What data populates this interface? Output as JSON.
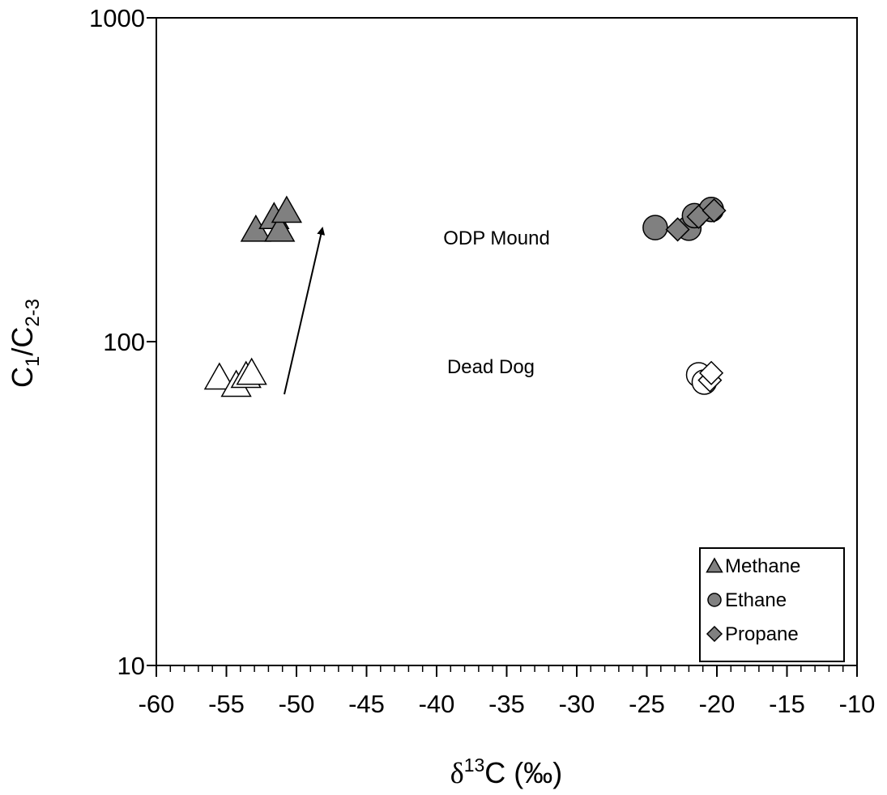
{
  "chart_data": {
    "type": "scatter",
    "x_label": [
      "δ",
      "13",
      "C (‰)"
    ],
    "y_label": [
      "C",
      "1",
      "/C",
      "2-3"
    ],
    "annotations": [
      "ODP Mound",
      "Dead Dog"
    ],
    "xlim": [
      -60,
      -10
    ],
    "xticks": [
      -60,
      -55,
      -50,
      -45,
      -40,
      -35,
      -30,
      -25,
      -20,
      -15,
      -10
    ],
    "ylim": [
      10,
      1000
    ],
    "yticks": [
      10,
      100,
      1000
    ],
    "log_y": true,
    "legend": "bottom-right",
    "series": [
      {
        "name": "Methane",
        "marker": "triangle",
        "color": "#808080",
        "x": [
          -52.9,
          -51.6,
          -51.2,
          -50.7,
          -55.5,
          -54.3,
          -53.6,
          -53.2
        ],
        "values": [
          222,
          243,
          222,
          254,
          77.6,
          73.7,
          78.5,
          80.3
        ],
        "colors": [
          "#808080",
          "#808080",
          "#808080",
          "#808080",
          "#ffffff",
          "#ffffff",
          "#ffffff",
          "#ffffff"
        ]
      },
      {
        "name": "Ethane",
        "marker": "circle",
        "color": "#808080",
        "x": [
          -24.4,
          -22.0,
          -21.6,
          -20.4,
          -21.3,
          -20.9
        ],
        "values": [
          225,
          224,
          245,
          256,
          79,
          75
        ],
        "colors": [
          "#808080",
          "#808080",
          "#808080",
          "#808080",
          "#ffffff",
          "#ffffff"
        ]
      },
      {
        "name": "Propane",
        "marker": "diamond",
        "color": "#808080",
        "x": [
          -22.8,
          -21.3,
          -20.2,
          -20.5,
          -20.4
        ],
        "values": [
          222,
          243,
          254,
          76,
          80
        ],
        "colors": [
          "#808080",
          "#808080",
          "#808080",
          "#ffffff",
          "#ffffff"
        ]
      }
    ]
  }
}
